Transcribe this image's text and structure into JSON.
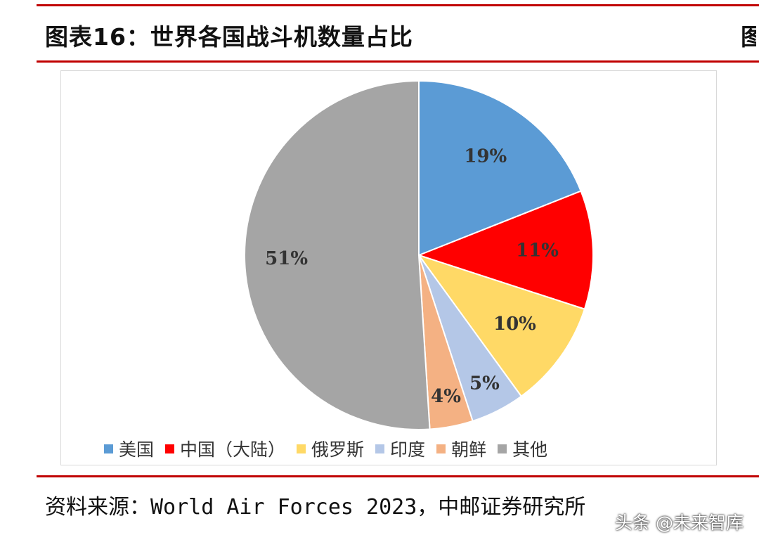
{
  "header": {
    "title": "图表16：世界各国战斗机数量占比",
    "title_right_fragment": "图"
  },
  "chart_data": {
    "type": "pie",
    "categories": [
      "美国",
      "中国（大陆）",
      "俄罗斯",
      "印度",
      "朝鲜",
      "其他"
    ],
    "values": [
      19,
      11,
      10,
      5,
      4,
      51
    ],
    "labels": [
      "19%",
      "11%",
      "10%",
      "5%",
      "4%",
      "51%"
    ],
    "colors": [
      "#5b9bd5",
      "#ff0000",
      "#ffd966",
      "#b4c7e7",
      "#f4b183",
      "#a5a5a5"
    ],
    "legend_position": "bottom"
  },
  "footer": {
    "source": "资料来源：World Air Forces 2023，中邮证券研究所",
    "watermark": "头条 @未来智库"
  }
}
